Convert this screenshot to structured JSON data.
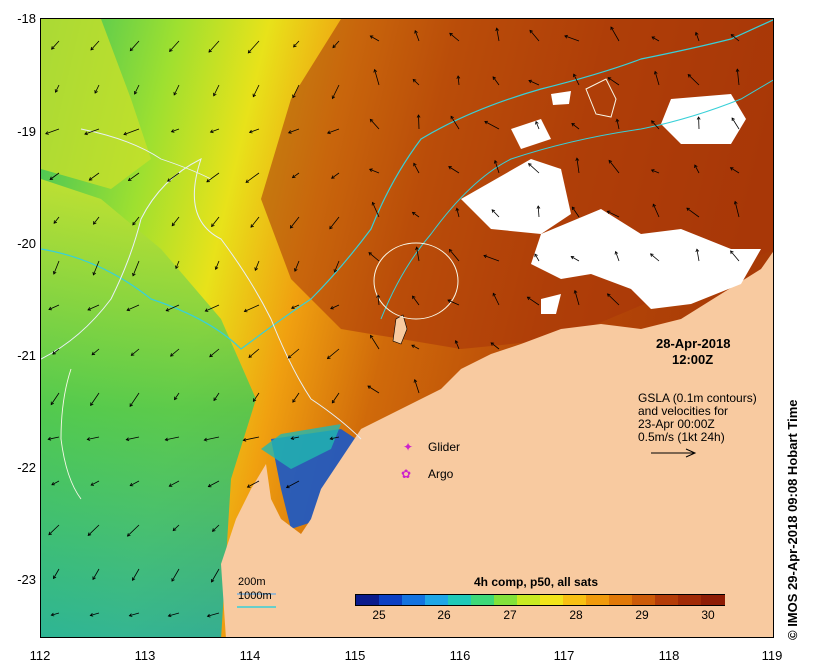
{
  "map": {
    "title_date": "28-Apr-2018",
    "title_time": "12:00Z",
    "gsla_note": [
      "GSLA (0.1m contours)",
      "and velocities for",
      "23-Apr 00:00Z",
      "0.5m/s (1kt 24h)"
    ],
    "markers": [
      {
        "label": "Glider",
        "symbol": "✦",
        "color": "#cc22cc"
      },
      {
        "label": "Argo",
        "symbol": "✿",
        "color": "#cc22cc"
      }
    ],
    "isobaths": [
      {
        "label": "200m",
        "color": "#7fb0d9"
      },
      {
        "label": "1000m",
        "color": "#38d0d8"
      }
    ],
    "colorbar": {
      "title": "4h comp, p50, all sats",
      "labels": [
        "25",
        "26",
        "27",
        "28",
        "29",
        "30"
      ],
      "colors": [
        "#0a1a8c",
        "#0b3fc4",
        "#1473e0",
        "#1fa6e6",
        "#20c9b8",
        "#3ed878",
        "#82e23a",
        "#c8ea22",
        "#f2e41a",
        "#f8c012",
        "#f09a0c",
        "#e07808",
        "#cc5a08",
        "#b43c08",
        "#a02a06",
        "#8e1c04"
      ]
    },
    "axes": {
      "y_ticks": [
        "-18",
        "-19",
        "-20",
        "-21",
        "-22",
        "-23"
      ],
      "x_ticks": [
        "112",
        "113",
        "114",
        "115",
        "116",
        "117",
        "118",
        "119"
      ]
    },
    "credit": "© IMOS 29-Apr-2018 09:08 Hobart Time",
    "colors": {
      "land": "#f8caa0",
      "cloud": "#ffffff",
      "ocean_warm": "#c0520e",
      "ocean_cool": "#7ed63a"
    }
  }
}
